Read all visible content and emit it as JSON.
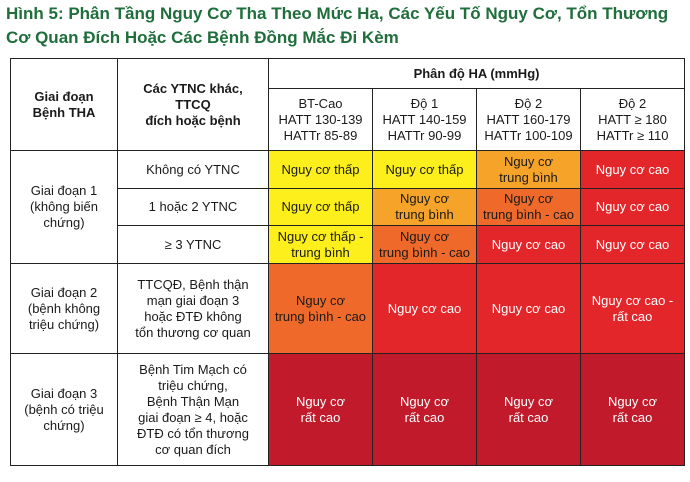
{
  "title": {
    "line1": "Hình 5: Phân Tầng Nguy Cơ Tha Theo Mức Ha, Các Yếu Tố Nguy Cơ, Tổn Thương",
    "line2": "Cơ Quan Đích Hoặc Các Bệnh Đồng Mắc Đi Kèm"
  },
  "header": {
    "stage_col": [
      "Giai đoạn",
      "Bệnh THA"
    ],
    "factors_col": [
      "Các YTNC khác,",
      "TTCQ",
      "đích hoặc bệnh"
    ],
    "ha_group": "Phân độ HA (mmHg)",
    "bp_levels": [
      {
        "name": "BT-Cao",
        "hatt": "HATT 130-139",
        "hattr": "HATTr 85-89"
      },
      {
        "name": "Độ 1",
        "hatt": "HATT 140-159",
        "hattr": "HATTr 90-99"
      },
      {
        "name": "Độ 2",
        "hatt": "HATT 160-179",
        "hattr": "HATTr 100-109"
      },
      {
        "name": "Độ 2",
        "hatt": "HATT ≥ 180",
        "hattr": "HATTr ≥ 110"
      }
    ]
  },
  "stages": [
    {
      "label": [
        "Giai đoạn 1",
        "(không biến",
        "chứng)"
      ]
    },
    {
      "label": [
        "Giai đoạn 2",
        "(bệnh không",
        "triệu chứng)"
      ]
    },
    {
      "label": [
        "Giai đoạn 3",
        "(bệnh có triệu",
        "chứng)"
      ]
    }
  ],
  "rows": [
    {
      "factor": [
        "Không có YTNC"
      ],
      "cells": [
        {
          "text": [
            "Nguy cơ thấp"
          ],
          "color": "#fcef1c"
        },
        {
          "text": [
            "Nguy cơ thấp"
          ],
          "color": "#fcef1c"
        },
        {
          "text": [
            "Nguy cơ",
            "trung bình"
          ],
          "color": "#f6a32a"
        },
        {
          "text": [
            "Nguy cơ cao"
          ],
          "color": "#e3262a"
        }
      ]
    },
    {
      "factor": [
        "1 hoặc 2 YTNC"
      ],
      "cells": [
        {
          "text": [
            "Nguy cơ thấp"
          ],
          "color": "#fcef1c"
        },
        {
          "text": [
            "Nguy cơ",
            "trung bình"
          ],
          "color": "#f6a32a"
        },
        {
          "text": [
            "Nguy cơ",
            "trung bình - cao"
          ],
          "color": "#ef6a2a"
        },
        {
          "text": [
            "Nguy cơ cao"
          ],
          "color": "#e3262a"
        }
      ]
    },
    {
      "factor": [
        "≥ 3 YTNC"
      ],
      "cells": [
        {
          "text": [
            "Nguy cơ thấp -",
            "trung bình"
          ],
          "color": "#fcef1c"
        },
        {
          "text": [
            "Nguy cơ",
            "trung bình - cao"
          ],
          "color": "#ef6a2a"
        },
        {
          "text": [
            "Nguy cơ cao"
          ],
          "color": "#e3262a"
        },
        {
          "text": [
            "Nguy cơ cao"
          ],
          "color": "#e3262a"
        }
      ]
    },
    {
      "factor": [
        "TTCQĐ, Bệnh thận",
        "mạn giai đoạn 3",
        "hoặc ĐTĐ không",
        "tổn thương cơ quan"
      ],
      "cells": [
        {
          "text": [
            "Nguy cơ",
            "trung bình - cao"
          ],
          "color": "#ef6a2a"
        },
        {
          "text": [
            "Nguy cơ cao"
          ],
          "color": "#e3262a"
        },
        {
          "text": [
            "Nguy cơ cao"
          ],
          "color": "#e3262a"
        },
        {
          "text": [
            "Nguy cơ cao -",
            "rất cao"
          ],
          "color": "#e3262a"
        }
      ]
    },
    {
      "factor": [
        "Bệnh Tim Mạch có",
        "triệu chứng,",
        "Bệnh Thận Mạn",
        "giai đoạn ≥ 4, hoặc",
        "ĐTĐ có tổn thương",
        "cơ quan đích"
      ],
      "cells": [
        {
          "text": [
            "Nguy cơ",
            "rất cao"
          ],
          "color": "#c01a2b"
        },
        {
          "text": [
            "Nguy cơ",
            "rất cao"
          ],
          "color": "#c01a2b"
        },
        {
          "text": [
            "Nguy cơ",
            "rất cao"
          ],
          "color": "#c01a2b"
        },
        {
          "text": [
            "Nguy cơ",
            "rất cao"
          ],
          "color": "#c01a2b"
        }
      ]
    }
  ]
}
